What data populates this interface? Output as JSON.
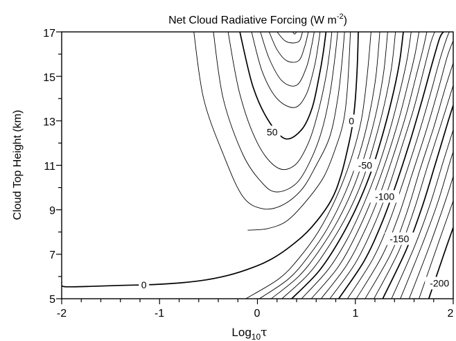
{
  "chart_data": {
    "type": "contour",
    "title": {
      "main": "Net Cloud Radiative Forcing (W m",
      "sup": "-2",
      "close": ")"
    },
    "xlabel": {
      "base": "Log",
      "sub": "10",
      "symbol": "τ"
    },
    "ylabel": "Cloud Top Height (km)",
    "xlim": [
      -2,
      2
    ],
    "ylim": [
      5,
      17
    ],
    "x_ticks": [
      "-2",
      "-1",
      "0",
      "1",
      "2"
    ],
    "y_ticks": [
      "5",
      "7",
      "9",
      "11",
      "13",
      "15",
      "17"
    ],
    "contour_interval": 10,
    "contour_labels": [
      "0",
      "50",
      "0",
      "-50",
      "-100",
      "-150",
      "-200"
    ],
    "contours": [
      {
        "level": 0,
        "major": true,
        "points": [
          [
            -2.0,
            5.75
          ],
          [
            -1.98,
            5.55
          ],
          [
            -1.75,
            5.55
          ],
          [
            -1.4,
            5.6
          ],
          [
            -1.0,
            5.65
          ],
          [
            -0.6,
            5.8
          ],
          [
            -0.3,
            6.05
          ],
          [
            -0.05,
            6.4
          ],
          [
            0.15,
            6.8
          ],
          [
            0.35,
            7.4
          ],
          [
            0.55,
            8.2
          ],
          [
            0.75,
            9.4
          ],
          [
            0.85,
            10.5
          ],
          [
            0.92,
            11.7
          ],
          [
            0.97,
            12.8
          ],
          [
            1.0,
            14.0
          ],
          [
            1.02,
            15.5
          ],
          [
            1.03,
            17.0
          ]
        ]
      },
      {
        "level": 10,
        "major": false,
        "points": [
          [
            -0.1,
            8.08
          ],
          [
            0.1,
            8.15
          ],
          [
            0.3,
            8.5
          ],
          [
            0.5,
            9.4
          ],
          [
            0.68,
            10.5
          ],
          [
            0.8,
            11.8
          ],
          [
            0.88,
            13.0
          ],
          [
            0.92,
            14.5
          ],
          [
            0.95,
            17.0
          ]
        ]
      },
      {
        "level": 20,
        "major": false,
        "points": [
          [
            -0.65,
            17.0
          ],
          [
            -0.55,
            14.0
          ],
          [
            -0.35,
            11.5
          ],
          [
            -0.15,
            9.6
          ],
          [
            0.05,
            9.05
          ],
          [
            0.25,
            9.2
          ],
          [
            0.45,
            9.9
          ],
          [
            0.6,
            11.0
          ],
          [
            0.74,
            12.3
          ],
          [
            0.82,
            14.0
          ],
          [
            0.86,
            15.5
          ],
          [
            0.89,
            17.0
          ]
        ]
      },
      {
        "level": 30,
        "major": false,
        "points": [
          [
            -0.45,
            17.0
          ],
          [
            -0.35,
            14.0
          ],
          [
            -0.15,
            11.5
          ],
          [
            0.05,
            10.2
          ],
          [
            0.2,
            9.8
          ],
          [
            0.4,
            10.2
          ],
          [
            0.55,
            11.3
          ],
          [
            0.66,
            12.6
          ],
          [
            0.74,
            14.2
          ],
          [
            0.79,
            15.8
          ],
          [
            0.82,
            17.0
          ]
        ]
      },
      {
        "level": 40,
        "major": false,
        "points": [
          [
            -0.3,
            17.0
          ],
          [
            -0.18,
            14.2
          ],
          [
            0.0,
            12.0
          ],
          [
            0.2,
            10.9
          ],
          [
            0.38,
            11.0
          ],
          [
            0.52,
            12.0
          ],
          [
            0.62,
            13.4
          ],
          [
            0.7,
            15.0
          ],
          [
            0.74,
            16.2
          ],
          [
            0.76,
            17.0
          ]
        ]
      },
      {
        "level": 50,
        "major": true,
        "points": [
          [
            -0.18,
            17.0
          ],
          [
            -0.05,
            14.6
          ],
          [
            0.1,
            13.1
          ],
          [
            0.28,
            12.2
          ],
          [
            0.45,
            12.6
          ],
          [
            0.56,
            13.6
          ],
          [
            0.63,
            15.0
          ],
          [
            0.67,
            16.0
          ],
          [
            0.7,
            17.0
          ]
        ]
      },
      {
        "level": 60,
        "major": false,
        "points": [
          [
            -0.06,
            17.0
          ],
          [
            0.05,
            15.2
          ],
          [
            0.2,
            14.0
          ],
          [
            0.38,
            13.6
          ],
          [
            0.5,
            14.2
          ],
          [
            0.58,
            15.4
          ],
          [
            0.62,
            16.4
          ],
          [
            0.64,
            17.0
          ]
        ]
      },
      {
        "level": 70,
        "major": false,
        "points": [
          [
            0.03,
            17.0
          ],
          [
            0.12,
            15.8
          ],
          [
            0.25,
            14.8
          ],
          [
            0.4,
            14.6
          ],
          [
            0.5,
            15.4
          ],
          [
            0.55,
            16.3
          ],
          [
            0.58,
            17.0
          ]
        ]
      },
      {
        "level": 80,
        "major": false,
        "points": [
          [
            0.12,
            17.0
          ],
          [
            0.2,
            16.2
          ],
          [
            0.3,
            15.7
          ],
          [
            0.42,
            15.7
          ],
          [
            0.48,
            16.3
          ],
          [
            0.52,
            17.0
          ]
        ]
      },
      {
        "level": 90,
        "major": false,
        "points": [
          [
            0.2,
            17.0
          ],
          [
            0.28,
            16.6
          ],
          [
            0.36,
            16.5
          ],
          [
            0.43,
            16.6
          ],
          [
            0.46,
            17.0
          ]
        ]
      },
      {
        "level": 100,
        "major": false,
        "points": [
          [
            0.36,
            17.0
          ],
          [
            0.38,
            16.9
          ],
          [
            0.4,
            17.0
          ]
        ]
      },
      {
        "level": -10,
        "major": false,
        "points": [
          [
            -0.12,
            5.0
          ],
          [
            0.22,
            5.9
          ],
          [
            0.42,
            6.8
          ],
          [
            0.62,
            8.0
          ],
          [
            0.8,
            9.5
          ],
          [
            0.95,
            11.2
          ],
          [
            1.06,
            13.0
          ],
          [
            1.12,
            15.0
          ],
          [
            1.16,
            17.0
          ]
        ]
      },
      {
        "level": -20,
        "major": false,
        "points": [
          [
            0.02,
            5.0
          ],
          [
            0.32,
            5.9
          ],
          [
            0.52,
            6.9
          ],
          [
            0.72,
            8.2
          ],
          [
            0.9,
            9.8
          ],
          [
            1.04,
            11.5
          ],
          [
            1.14,
            13.2
          ],
          [
            1.21,
            15.0
          ],
          [
            1.25,
            17.0
          ]
        ]
      },
      {
        "level": -30,
        "major": false,
        "points": [
          [
            0.14,
            5.0
          ],
          [
            0.42,
            6.0
          ],
          [
            0.62,
            7.1
          ],
          [
            0.82,
            8.5
          ],
          [
            0.99,
            10.1
          ],
          [
            1.12,
            11.8
          ],
          [
            1.22,
            13.5
          ],
          [
            1.29,
            15.2
          ],
          [
            1.33,
            17.0
          ]
        ]
      },
      {
        "level": -40,
        "major": false,
        "points": [
          [
            0.25,
            5.0
          ],
          [
            0.52,
            6.1
          ],
          [
            0.72,
            7.3
          ],
          [
            0.92,
            8.8
          ],
          [
            1.08,
            10.4
          ],
          [
            1.2,
            12.1
          ],
          [
            1.3,
            13.8
          ],
          [
            1.37,
            15.4
          ],
          [
            1.41,
            17.0
          ]
        ]
      },
      {
        "level": -50,
        "major": true,
        "points": [
          [
            0.35,
            5.0
          ],
          [
            0.62,
            6.2
          ],
          [
            0.82,
            7.5
          ],
          [
            1.0,
            9.0
          ],
          [
            1.16,
            10.7
          ],
          [
            1.28,
            12.4
          ],
          [
            1.38,
            14.1
          ],
          [
            1.45,
            15.6
          ],
          [
            1.49,
            17.0
          ]
        ]
      },
      {
        "level": -60,
        "major": false,
        "points": [
          [
            0.45,
            5.0
          ],
          [
            0.72,
            6.3
          ],
          [
            0.92,
            7.7
          ],
          [
            1.09,
            9.3
          ],
          [
            1.24,
            11.0
          ],
          [
            1.36,
            12.7
          ],
          [
            1.46,
            14.4
          ],
          [
            1.53,
            15.8
          ],
          [
            1.57,
            17.0
          ]
        ]
      },
      {
        "level": -70,
        "major": false,
        "points": [
          [
            0.55,
            5.0
          ],
          [
            0.82,
            6.4
          ],
          [
            1.01,
            7.9
          ],
          [
            1.18,
            9.6
          ],
          [
            1.32,
            11.3
          ],
          [
            1.44,
            13.0
          ],
          [
            1.54,
            14.7
          ],
          [
            1.61,
            16.0
          ],
          [
            1.65,
            17.0
          ]
        ]
      },
      {
        "level": -80,
        "major": false,
        "points": [
          [
            0.65,
            5.0
          ],
          [
            0.91,
            6.5
          ],
          [
            1.1,
            8.1
          ],
          [
            1.26,
            9.8
          ],
          [
            1.4,
            11.6
          ],
          [
            1.52,
            13.3
          ],
          [
            1.62,
            15.0
          ],
          [
            1.69,
            16.2
          ],
          [
            1.73,
            17.0
          ]
        ]
      },
      {
        "level": -90,
        "major": false,
        "points": [
          [
            0.74,
            5.0
          ],
          [
            1.0,
            6.6
          ],
          [
            1.19,
            8.3
          ],
          [
            1.34,
            10.0
          ],
          [
            1.48,
            11.9
          ],
          [
            1.6,
            13.6
          ],
          [
            1.7,
            15.3
          ],
          [
            1.77,
            16.5
          ],
          [
            1.81,
            17.0
          ]
        ]
      },
      {
        "level": -100,
        "major": true,
        "points": [
          [
            0.83,
            5.0
          ],
          [
            1.09,
            6.7
          ],
          [
            1.27,
            8.4
          ],
          [
            1.42,
            10.2
          ],
          [
            1.56,
            12.1
          ],
          [
            1.68,
            13.9
          ],
          [
            1.78,
            15.5
          ],
          [
            1.86,
            16.7
          ],
          [
            1.9,
            17.0
          ]
        ]
      },
      {
        "level": -110,
        "major": false,
        "points": [
          [
            0.92,
            5.0
          ],
          [
            1.18,
            6.8
          ],
          [
            1.35,
            8.5
          ],
          [
            1.5,
            10.4
          ],
          [
            1.64,
            12.3
          ],
          [
            1.76,
            14.1
          ],
          [
            1.86,
            15.7
          ],
          [
            1.95,
            16.9
          ],
          [
            1.98,
            17.0
          ]
        ]
      },
      {
        "level": -120,
        "major": false,
        "points": [
          [
            1.01,
            5.0
          ],
          [
            1.27,
            6.9
          ],
          [
            1.44,
            8.7
          ],
          [
            1.58,
            10.6
          ],
          [
            1.72,
            12.5
          ],
          [
            1.84,
            14.3
          ],
          [
            1.94,
            15.9
          ],
          [
            2.0,
            16.6
          ]
        ]
      },
      {
        "level": -130,
        "major": false,
        "points": [
          [
            1.1,
            5.0
          ],
          [
            1.36,
            7.0
          ],
          [
            1.52,
            8.8
          ],
          [
            1.66,
            10.8
          ],
          [
            1.8,
            12.7
          ],
          [
            1.92,
            14.5
          ],
          [
            2.0,
            15.6
          ]
        ]
      },
      {
        "level": -140,
        "major": false,
        "points": [
          [
            1.19,
            5.0
          ],
          [
            1.44,
            7.1
          ],
          [
            1.6,
            9.0
          ],
          [
            1.74,
            11.0
          ],
          [
            1.88,
            12.9
          ],
          [
            2.0,
            14.6
          ]
        ]
      },
      {
        "level": -150,
        "major": true,
        "points": [
          [
            1.28,
            5.0
          ],
          [
            1.52,
            7.2
          ],
          [
            1.68,
            9.1
          ],
          [
            1.82,
            11.1
          ],
          [
            1.95,
            13.0
          ],
          [
            2.0,
            13.7
          ]
        ]
      },
      {
        "level": -160,
        "major": false,
        "points": [
          [
            1.37,
            5.0
          ],
          [
            1.6,
            7.3
          ],
          [
            1.76,
            9.2
          ],
          [
            1.9,
            11.2
          ],
          [
            2.0,
            12.6
          ]
        ]
      },
      {
        "level": -170,
        "major": false,
        "points": [
          [
            1.46,
            5.0
          ],
          [
            1.68,
            7.4
          ],
          [
            1.84,
            9.3
          ],
          [
            1.97,
            11.2
          ],
          [
            2.0,
            11.6
          ]
        ]
      },
      {
        "level": -180,
        "major": false,
        "points": [
          [
            1.55,
            5.0
          ],
          [
            1.76,
            7.4
          ],
          [
            1.92,
            9.4
          ],
          [
            2.0,
            10.5
          ]
        ]
      },
      {
        "level": -190,
        "major": false,
        "points": [
          [
            1.65,
            5.0
          ],
          [
            1.84,
            7.4
          ],
          [
            2.0,
            9.4
          ]
        ]
      },
      {
        "level": -200,
        "major": true,
        "points": [
          [
            1.75,
            5.0
          ],
          [
            1.92,
            7.2
          ],
          [
            2.0,
            8.2
          ]
        ]
      }
    ],
    "labels": [
      {
        "text": "0",
        "x": -1.16,
        "y": 5.63
      },
      {
        "text": "50",
        "x": 0.15,
        "y": 12.5
      },
      {
        "text": "0",
        "x": 0.96,
        "y": 13.0
      },
      {
        "text": "-50",
        "x": 1.1,
        "y": 11.0
      },
      {
        "text": "-100",
        "x": 1.3,
        "y": 9.6
      },
      {
        "text": "-150",
        "x": 1.45,
        "y": 7.7
      },
      {
        "text": "-200",
        "x": 1.86,
        "y": 5.7
      }
    ]
  }
}
